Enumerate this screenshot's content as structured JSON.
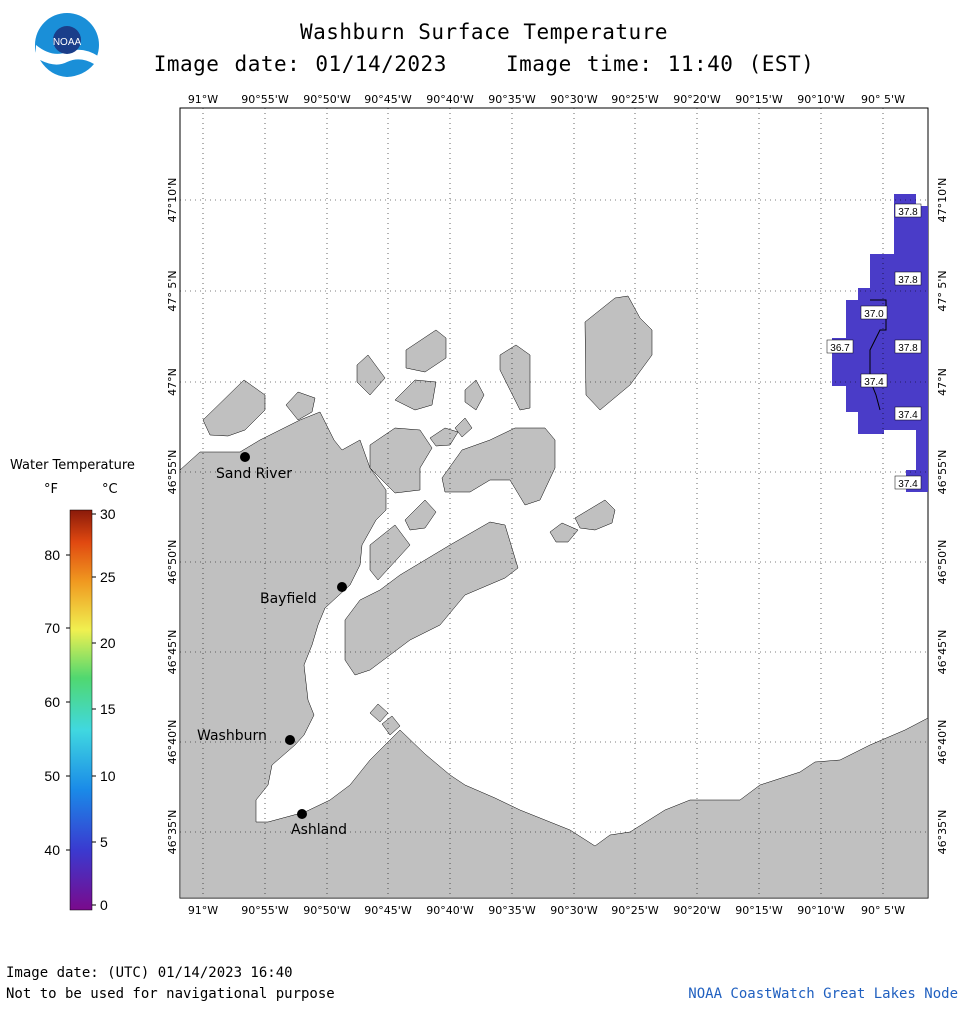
{
  "header": {
    "title": "Washburn Surface Temperature",
    "image_date": "Image date: 01/14/2023",
    "image_time": "Image time: 11:40 (EST)",
    "logo_text": "NOAA"
  },
  "axes": {
    "lon_labels": [
      "91°W",
      "90°55'W",
      "90°50'W",
      "90°45'W",
      "90°40'W",
      "90°35'W",
      "90°30'W",
      "90°25'W",
      "90°20'W",
      "90°15'W",
      "90°10'W",
      "90° 5'W"
    ],
    "lat_labels": [
      "47°10'N",
      "47° 5'N",
      "47°N",
      "46°55'N",
      "46°50'N",
      "46°45'N",
      "46°40'N",
      "46°35'N"
    ]
  },
  "cities": [
    {
      "name": "Sand River"
    },
    {
      "name": "Bayfield"
    },
    {
      "name": "Washburn"
    },
    {
      "name": "Ashland"
    }
  ],
  "temperature_labels": [
    "37.8",
    "37.8",
    "37.0",
    "36.7",
    "37.8",
    "37.4",
    "37.4",
    "37.4"
  ],
  "legend": {
    "title": "Water Temperature",
    "unit_f": "°F",
    "unit_c": "°C",
    "f_ticks": [
      "80",
      "70",
      "60",
      "50",
      "40"
    ],
    "c_ticks": [
      "30",
      "25",
      "20",
      "15",
      "10",
      "5",
      "0"
    ]
  },
  "colors": {
    "land": "#c0c0c0",
    "water_data": "#4a3cc8",
    "credit": "#2060c0"
  },
  "footer": {
    "utc_date": "Image date: (UTC) 01/14/2023  16:40",
    "disclaimer": "Not to be used for navigational purpose",
    "credit": "NOAA CoastWatch Great Lakes Node"
  }
}
